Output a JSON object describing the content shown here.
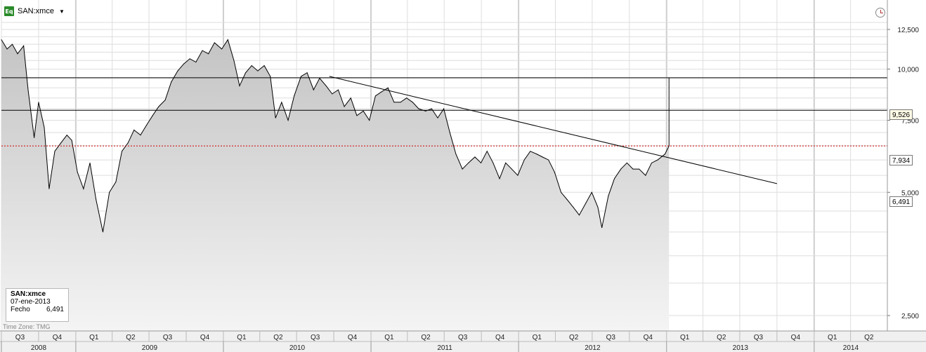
{
  "header": {
    "symbol": "SAN:xmce",
    "icon": "Eq"
  },
  "info_box": {
    "symbol": "SAN:xmce",
    "date": "07-ene-2013",
    "field_label": "Fecho",
    "field_value": "6,491"
  },
  "timezone": "Time Zone: TMG",
  "price_badges": [
    "9,526",
    "7,934",
    "6,491"
  ],
  "colors": {
    "area_fill_top": "#c4c4c4",
    "area_fill_bottom": "#f4f4f4",
    "line": "#000000",
    "last_price_line": "#cc0000",
    "grid": "#dedede",
    "axis_band": "#f0f0f0"
  },
  "chart_data": {
    "type": "area",
    "y_scale": "log",
    "y_ticks": [
      "12,500",
      "10,000",
      "7,500",
      "5,000",
      "2,500"
    ],
    "y_tick_values": [
      12500,
      10000,
      7500,
      5000,
      2500
    ],
    "quarter_labels": [
      "Q3",
      "Q4",
      "Q1",
      "Q2",
      "Q3",
      "Q4",
      "Q1",
      "Q2",
      "Q3",
      "Q4",
      "Q1",
      "Q2",
      "Q3",
      "Q4",
      "Q1",
      "Q2",
      "Q3",
      "Q4",
      "Q1",
      "Q2",
      "Q3",
      "Q4",
      "Q1",
      "Q2"
    ],
    "year_labels": [
      "2008",
      "2009",
      "2010",
      "2011",
      "2012",
      "2013",
      "2014"
    ],
    "x_range": [
      "2008-07-01",
      "2014-07-01"
    ],
    "series": [
      {
        "values": [
          [
            "2008-07-01",
            11800
          ],
          [
            "2008-07-15",
            11200
          ],
          [
            "2008-07-28",
            11500
          ],
          [
            "2008-08-10",
            10900
          ],
          [
            "2008-08-25",
            11400
          ],
          [
            "2008-09-05",
            8900
          ],
          [
            "2008-09-20",
            6800
          ],
          [
            "2008-10-01",
            8300
          ],
          [
            "2008-10-15",
            7200
          ],
          [
            "2008-10-27",
            5100
          ],
          [
            "2008-11-10",
            6300
          ],
          [
            "2008-11-25",
            6600
          ],
          [
            "2008-12-10",
            6900
          ],
          [
            "2008-12-22",
            6700
          ],
          [
            "2009-01-05",
            5600
          ],
          [
            "2009-01-20",
            5100
          ],
          [
            "2009-02-05",
            5900
          ],
          [
            "2009-02-20",
            4800
          ],
          [
            "2009-03-09",
            4000
          ],
          [
            "2009-03-25",
            5000
          ],
          [
            "2009-04-10",
            5300
          ],
          [
            "2009-04-25",
            6300
          ],
          [
            "2009-05-10",
            6600
          ],
          [
            "2009-05-25",
            7100
          ],
          [
            "2009-06-10",
            6900
          ],
          [
            "2009-06-25",
            7300
          ],
          [
            "2009-07-10",
            7700
          ],
          [
            "2009-07-25",
            8100
          ],
          [
            "2009-08-10",
            8400
          ],
          [
            "2009-08-25",
            9300
          ],
          [
            "2009-09-10",
            9900
          ],
          [
            "2009-09-25",
            10300
          ],
          [
            "2009-10-10",
            10600
          ],
          [
            "2009-10-25",
            10400
          ],
          [
            "2009-11-10",
            11100
          ],
          [
            "2009-11-25",
            10900
          ],
          [
            "2009-12-10",
            11600
          ],
          [
            "2009-12-28",
            11200
          ],
          [
            "2010-01-12",
            11800
          ],
          [
            "2010-01-27",
            10500
          ],
          [
            "2010-02-10",
            9100
          ],
          [
            "2010-02-25",
            9800
          ],
          [
            "2010-03-12",
            10200
          ],
          [
            "2010-03-27",
            9900
          ],
          [
            "2010-04-12",
            10200
          ],
          [
            "2010-04-27",
            9600
          ],
          [
            "2010-05-10",
            7600
          ],
          [
            "2010-05-25",
            8300
          ],
          [
            "2010-06-10",
            7500
          ],
          [
            "2010-06-25",
            8600
          ],
          [
            "2010-07-12",
            9600
          ],
          [
            "2010-07-27",
            9800
          ],
          [
            "2010-08-12",
            8900
          ],
          [
            "2010-08-27",
            9500
          ],
          [
            "2010-09-12",
            9100
          ],
          [
            "2010-09-27",
            8700
          ],
          [
            "2010-10-12",
            8900
          ],
          [
            "2010-10-27",
            8100
          ],
          [
            "2010-11-12",
            8500
          ],
          [
            "2010-11-27",
            7700
          ],
          [
            "2010-12-13",
            7900
          ],
          [
            "2010-12-28",
            7500
          ],
          [
            "2011-01-12",
            8600
          ],
          [
            "2011-01-27",
            8800
          ],
          [
            "2011-02-12",
            9000
          ],
          [
            "2011-02-27",
            8300
          ],
          [
            "2011-03-15",
            8300
          ],
          [
            "2011-03-30",
            8500
          ],
          [
            "2011-04-14",
            8300
          ],
          [
            "2011-04-29",
            8000
          ],
          [
            "2011-05-16",
            7900
          ],
          [
            "2011-05-31",
            8000
          ],
          [
            "2011-06-15",
            7600
          ],
          [
            "2011-06-30",
            8000
          ],
          [
            "2011-07-15",
            7000
          ],
          [
            "2011-07-30",
            6200
          ],
          [
            "2011-08-15",
            5700
          ],
          [
            "2011-08-30",
            5900
          ],
          [
            "2011-09-15",
            6100
          ],
          [
            "2011-09-30",
            5900
          ],
          [
            "2011-10-15",
            6300
          ],
          [
            "2011-10-30",
            5900
          ],
          [
            "2011-11-15",
            5400
          ],
          [
            "2011-11-30",
            5900
          ],
          [
            "2011-12-15",
            5700
          ],
          [
            "2011-12-30",
            5500
          ],
          [
            "2012-01-15",
            6000
          ],
          [
            "2012-01-30",
            6300
          ],
          [
            "2012-02-15",
            6200
          ],
          [
            "2012-02-29",
            6100
          ],
          [
            "2012-03-15",
            6000
          ],
          [
            "2012-03-30",
            5600
          ],
          [
            "2012-04-15",
            5000
          ],
          [
            "2012-04-30",
            4800
          ],
          [
            "2012-05-15",
            4600
          ],
          [
            "2012-05-30",
            4400
          ],
          [
            "2012-06-15",
            4700
          ],
          [
            "2012-06-30",
            5000
          ],
          [
            "2012-07-15",
            4600
          ],
          [
            "2012-07-25",
            4100
          ],
          [
            "2012-08-10",
            4900
          ],
          [
            "2012-08-25",
            5400
          ],
          [
            "2012-09-10",
            5700
          ],
          [
            "2012-09-25",
            5900
          ],
          [
            "2012-10-10",
            5700
          ],
          [
            "2012-10-25",
            5700
          ],
          [
            "2012-11-10",
            5500
          ],
          [
            "2012-11-25",
            5900
          ],
          [
            "2012-12-10",
            6000
          ],
          [
            "2012-12-28",
            6200
          ],
          [
            "2013-01-07",
            6491
          ]
        ]
      }
    ],
    "horizontal_lines": [
      9526,
      7934
    ],
    "last_price": 6491,
    "trendline": [
      [
        "2010-09-20",
        9600
      ],
      [
        "2013-10-01",
        5250
      ]
    ],
    "spike": {
      "date": "2013-01-07",
      "from": 6491,
      "to": 9526
    },
    "grid": true,
    "legend": "none"
  }
}
